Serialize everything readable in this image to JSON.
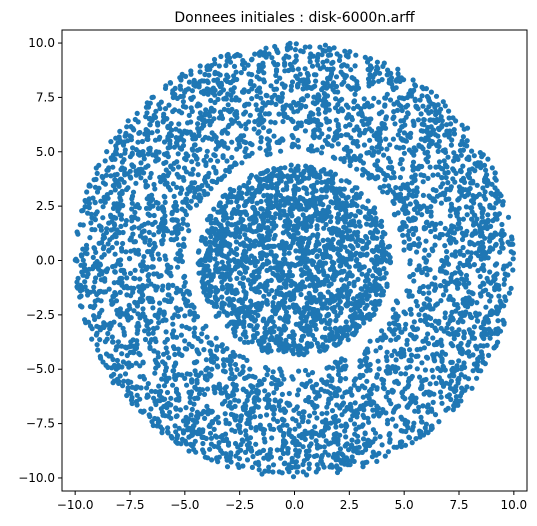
{
  "chart_data": {
    "type": "scatter",
    "title": "Donnees initiales : disk-6000n.arff",
    "xlabel": "",
    "ylabel": "",
    "xlim": [
      -10.6,
      10.6
    ],
    "ylim": [
      -10.6,
      10.6
    ],
    "grid": false,
    "xticks": [
      -10.0,
      -7.5,
      -5.0,
      -2.5,
      0.0,
      2.5,
      5.0,
      7.5,
      10.0
    ],
    "yticks": [
      -10.0,
      -7.5,
      -5.0,
      -2.5,
      0.0,
      2.5,
      5.0,
      7.5,
      10.0
    ],
    "xtick_labels": [
      "−10.0",
      "−7.5",
      "−5.0",
      "−2.5",
      "0.0",
      "2.5",
      "5.0",
      "7.5",
      "10.0"
    ],
    "ytick_labels": [
      "−10.0",
      "−7.5",
      "−5.0",
      "−2.5",
      "0.0",
      "2.5",
      "5.0",
      "7.5",
      "10.0"
    ],
    "marker_color": "#1f77b4",
    "series": [
      {
        "clusters": [
          {
            "shape": "disk",
            "center": [
              0,
              0
            ],
            "radius": 4.4,
            "n_points": 1900
          },
          {
            "shape": "ring",
            "center": [
              0,
              0
            ],
            "inner_radius": 5.0,
            "outer_radius": 10.0,
            "n_points": 4100
          }
        ]
      }
    ]
  }
}
